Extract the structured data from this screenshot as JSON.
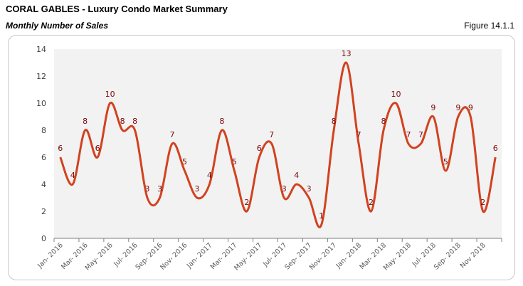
{
  "header": {
    "title": "CORAL GABLES - Luxury Condo Market Summary",
    "subtitle": "Monthly Number of Sales",
    "figure": "Figure 14.1.1"
  },
  "chart_data": {
    "type": "line",
    "title": "",
    "xlabel": "",
    "ylabel": "",
    "ylim": [
      0,
      14
    ],
    "yticks": [
      0,
      2,
      4,
      6,
      8,
      10,
      12,
      14
    ],
    "grid": false,
    "smooth": true,
    "line_color": "#d2421f",
    "label_color": "#7b0a0a",
    "plot_background": "#f2f2f2",
    "x": [
      "Jan- 2016",
      "Feb- 2016",
      "Mar- 2016",
      "Apr- 2016",
      "May- 2016",
      "Jun- 2016",
      "Jul- 2016",
      "Aug- 2016",
      "Sep- 2016",
      "Oct- 2016",
      "Nov- 2016",
      "Dec- 2016",
      "Jan- 2017",
      "Feb- 2017",
      "Mar- 2017",
      "Apr- 2017",
      "May- 2017",
      "Jun- 2017",
      "Jul- 2017",
      "Aug- 2017",
      "Sep- 2017",
      "Oct- 2017",
      "Nov- 2017",
      "Dec- 2017",
      "Jan- 2018",
      "Feb- 2018",
      "Mar- 2018",
      "Apr- 2018",
      "May- 2018",
      "Jun- 2018",
      "Jul- 2018",
      "Aug- 2018",
      "Sep- 2018",
      "Oct- 2018",
      "Nov 2018",
      "Dec- 2018"
    ],
    "xtick_labels": [
      "Jan- 2016",
      "Mar- 2016",
      "May- 2016",
      "Jul- 2016",
      "Sep- 2016",
      "Nov- 2016",
      "Jan- 2017",
      "Mar- 2017",
      "May- 2017",
      "Jul- 2017",
      "Sep- 2017",
      "Nov- 2017",
      "Jan- 2018",
      "Mar- 2018",
      "May- 2018",
      "Jul- 2018",
      "Sep- 2018",
      "Nov 2018"
    ],
    "values": [
      6,
      4,
      8,
      6,
      10,
      8,
      8,
      3,
      3,
      7,
      5,
      3,
      4,
      8,
      5,
      2,
      6,
      7,
      3,
      4,
      3,
      1,
      8,
      13,
      7,
      2,
      8,
      10,
      7,
      7,
      9,
      5,
      9,
      9,
      2,
      6
    ]
  }
}
